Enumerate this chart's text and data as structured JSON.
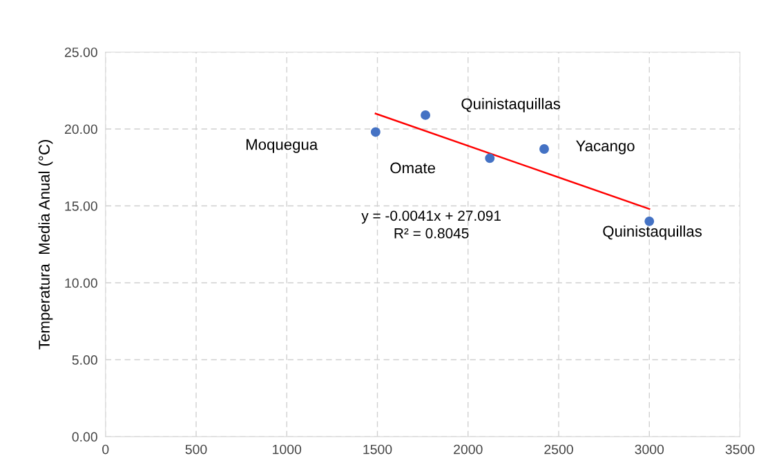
{
  "chart_data": {
    "type": "scatter",
    "ylabel": "Temperatura  Media Anual (°C)",
    "xlim": [
      0,
      3500
    ],
    "xticks": [
      0,
      500,
      1000,
      1500,
      2000,
      2500,
      3000,
      3500
    ],
    "ylim": [
      0,
      25
    ],
    "yticks": [
      {
        "value": 0,
        "label": "0.00"
      },
      {
        "value": 5,
        "label": "5.00"
      },
      {
        "value": 10,
        "label": "10.00"
      },
      {
        "value": 15,
        "label": "15.00"
      },
      {
        "value": 20,
        "label": "20.00"
      },
      {
        "value": 25,
        "label": "25.00"
      }
    ],
    "grid": true,
    "marker": "circle",
    "series": [
      {
        "color": "#4472c4",
        "x": [
          1490,
          1765,
          2120,
          2420,
          3000
        ],
        "values": [
          19.8,
          20.9,
          18.1,
          18.7,
          14.0
        ]
      },
      {
        "type": "line",
        "color": "#ff0000",
        "x": [
          1490,
          3000
        ],
        "values": [
          21.0,
          14.8
        ],
        "line_style": "solid",
        "marker": "none"
      }
    ],
    "annotations": [
      "Moquegua",
      "Quinistaquillas",
      "Omate",
      "Yacango",
      "Quinistaquillas",
      "y = -0.0041x + 27.091\nR² = 0.8045"
    ]
  }
}
